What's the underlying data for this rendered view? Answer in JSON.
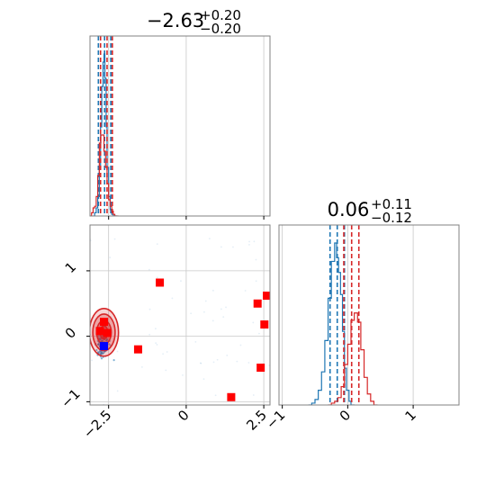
{
  "chart_data": [
    {
      "type": "histogram",
      "panel": "marginal-1",
      "title": {
        "main": "−2.63",
        "upper": "+0.20",
        "lower": "−0.20"
      },
      "xlim": [
        -3.1,
        2.7
      ],
      "x_ticks": [
        -2.5,
        0.0,
        2.5
      ],
      "grid": true,
      "series": [
        {
          "color": "#1f77b4",
          "bins": [
            [
              -3.0,
              0
            ],
            [
              -2.95,
              0.02
            ],
            [
              -2.9,
              0.05
            ],
            [
              -2.85,
              0.12
            ],
            [
              -2.8,
              0.3
            ],
            [
              -2.76,
              0.55
            ],
            [
              -2.72,
              0.8
            ],
            [
              -2.68,
              0.95
            ],
            [
              -2.65,
              1.0
            ],
            [
              -2.62,
              0.85
            ],
            [
              -2.58,
              0.55
            ],
            [
              -2.55,
              0.3
            ],
            [
              -2.5,
              0.12
            ],
            [
              -2.45,
              0.04
            ],
            [
              -2.4,
              0.01
            ],
            [
              -2.35,
              0
            ]
          ],
          "quantile_lines": [
            -2.83,
            -2.63,
            -2.43
          ]
        },
        {
          "color": "#d62728",
          "bins": [
            [
              -3.1,
              0
            ],
            [
              -3.05,
              0.02
            ],
            [
              -3.0,
              0.05
            ],
            [
              -2.95,
              0.06
            ],
            [
              -2.9,
              0.12
            ],
            [
              -2.85,
              0.25
            ],
            [
              -2.8,
              0.45
            ],
            [
              -2.75,
              0.5
            ],
            [
              -2.7,
              0.5
            ],
            [
              -2.65,
              0.4
            ],
            [
              -2.6,
              0.3
            ],
            [
              -2.55,
              0.2
            ],
            [
              -2.5,
              0.1
            ],
            [
              -2.45,
              0.06
            ],
            [
              -2.4,
              0.03
            ],
            [
              -2.35,
              0.01
            ],
            [
              -2.3,
              0
            ]
          ],
          "quantile_lines": [
            -2.76,
            -2.55,
            -2.38
          ]
        }
      ]
    },
    {
      "type": "histogram",
      "panel": "marginal-2",
      "title": {
        "main": "0.06",
        "upper": "+0.11",
        "lower": "−0.12"
      },
      "xlim": [
        -1.05,
        1.7
      ],
      "x_ticks": [
        -1,
        0,
        1
      ],
      "grid": true,
      "series": [
        {
          "color": "#1f77b4",
          "bins": [
            [
              -0.6,
              0
            ],
            [
              -0.55,
              0.01
            ],
            [
              -0.5,
              0.03
            ],
            [
              -0.45,
              0.08
            ],
            [
              -0.4,
              0.18
            ],
            [
              -0.35,
              0.35
            ],
            [
              -0.3,
              0.58
            ],
            [
              -0.25,
              0.78
            ],
            [
              -0.2,
              0.88
            ],
            [
              -0.17,
              0.8
            ],
            [
              -0.14,
              0.72
            ],
            [
              -0.11,
              0.6
            ],
            [
              -0.08,
              0.4
            ],
            [
              -0.05,
              0.2
            ],
            [
              -0.02,
              0.08
            ],
            [
              0.02,
              0.02
            ],
            [
              0.05,
              0
            ]
          ],
          "quantile_lines": [
            -0.27,
            -0.16,
            -0.05
          ]
        },
        {
          "color": "#d62728",
          "bins": [
            [
              -0.3,
              0
            ],
            [
              -0.25,
              0.01
            ],
            [
              -0.2,
              0.02
            ],
            [
              -0.15,
              0.04
            ],
            [
              -0.1,
              0.1
            ],
            [
              -0.05,
              0.22
            ],
            [
              0.0,
              0.33
            ],
            [
              0.05,
              0.46
            ],
            [
              0.1,
              0.5
            ],
            [
              0.15,
              0.45
            ],
            [
              0.2,
              0.3
            ],
            [
              0.25,
              0.15
            ],
            [
              0.3,
              0.06
            ],
            [
              0.35,
              0.02
            ],
            [
              0.4,
              0
            ]
          ],
          "quantile_lines": [
            -0.06,
            0.06,
            0.17
          ]
        }
      ]
    },
    {
      "type": "scatter",
      "panel": "joint",
      "xlim": [
        -3.1,
        2.7
      ],
      "ylim": [
        -1.05,
        1.7
      ],
      "x_ticks": [
        -2.5,
        0.0,
        2.5
      ],
      "y_ticks": [
        -1,
        0,
        1
      ],
      "grid": true,
      "blue_samples": {
        "color": "#1f77b4",
        "center": [
          -2.7,
          -0.12
        ],
        "spread": [
          0.1,
          0.1
        ]
      },
      "red_samples": {
        "color": "#d62728",
        "center": [
          -2.65,
          0.06
        ],
        "spread": [
          0.18,
          0.14
        ]
      },
      "blue_marker": {
        "color": "#0000ff",
        "x": -2.65,
        "y": -0.15
      },
      "red_markers": {
        "color": "#ff0000",
        "points": [
          [
            -0.85,
            0.82
          ],
          [
            -1.55,
            -0.2
          ],
          [
            2.3,
            0.5
          ],
          [
            2.52,
            0.18
          ],
          [
            2.6,
            0.62
          ],
          [
            2.4,
            -0.48
          ],
          [
            1.45,
            -0.93
          ],
          [
            -2.78,
            0.08
          ],
          [
            -2.65,
            0.22
          ],
          [
            -2.55,
            0.05
          ]
        ]
      }
    }
  ]
}
